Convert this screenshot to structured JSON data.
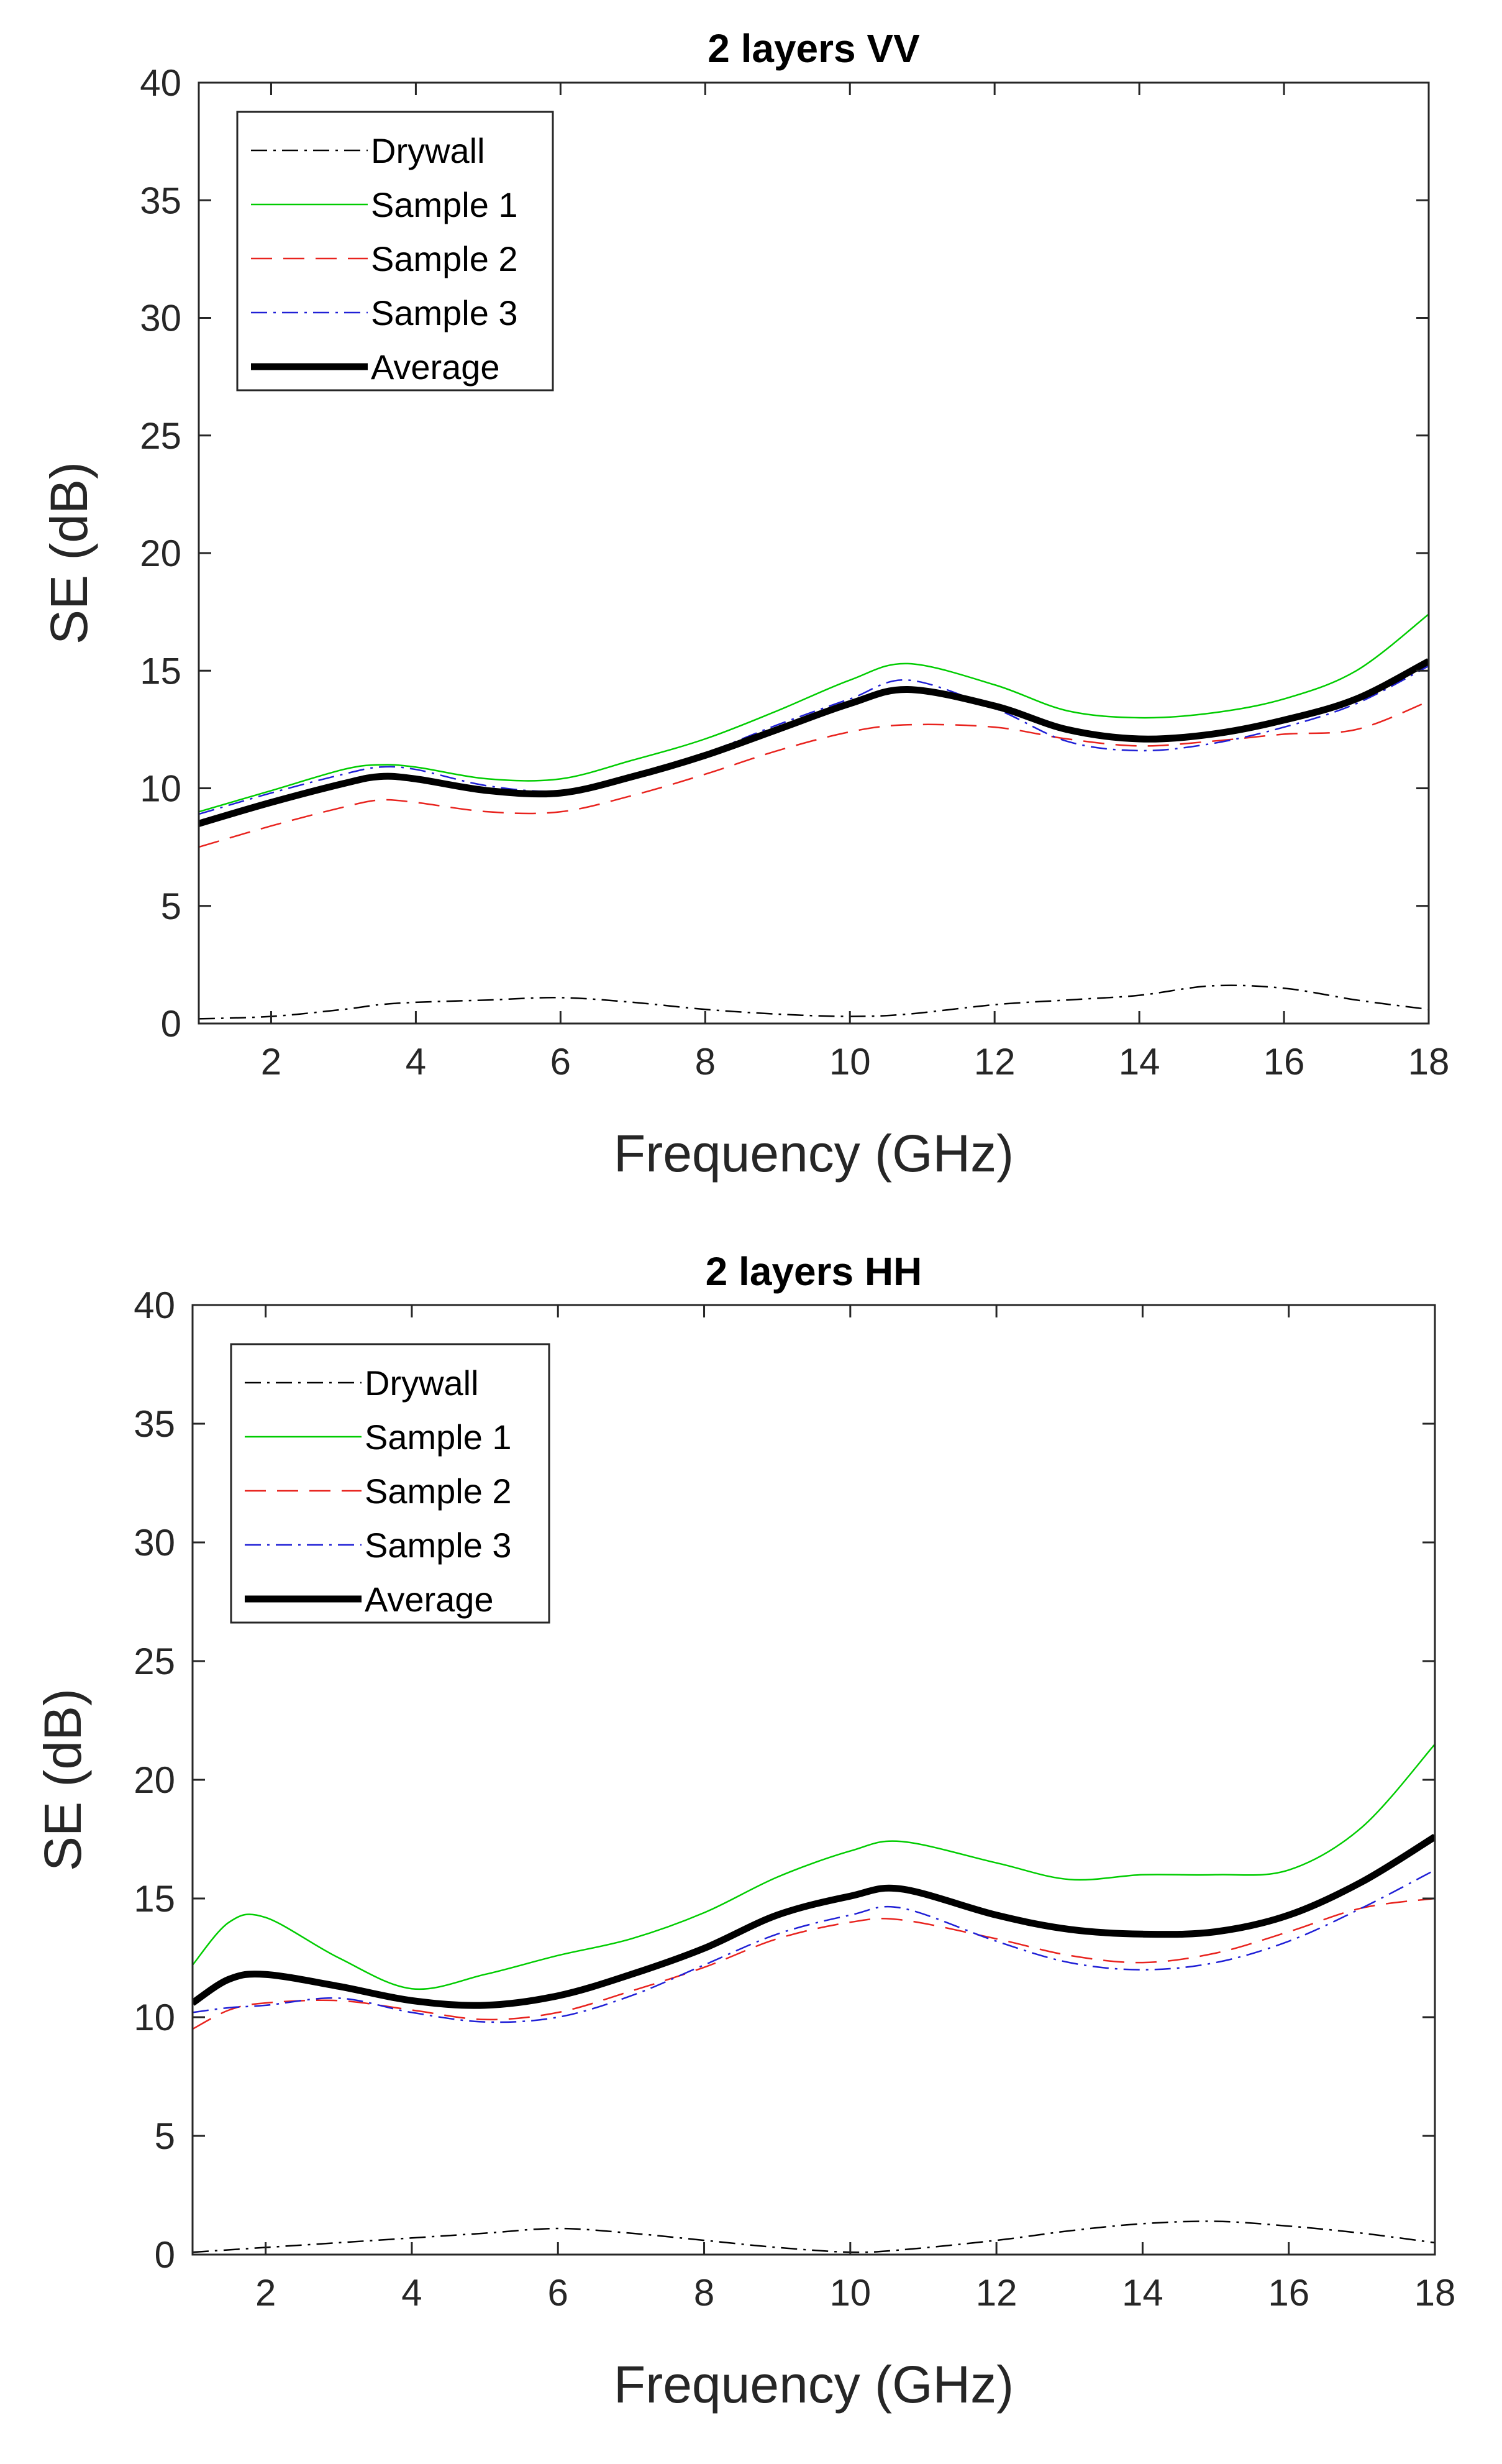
{
  "chart_data": [
    {
      "type": "line",
      "title": "2 layers VV",
      "xlabel": "Frequency (GHz)",
      "ylabel": "SE (dB)",
      "xlim": [
        1,
        18
      ],
      "ylim": [
        0,
        40
      ],
      "xticks": [
        "2",
        "4",
        "6",
        "8",
        "10",
        "12",
        "14",
        "16",
        "18"
      ],
      "yticks": [
        "0",
        "5",
        "10",
        "15",
        "20",
        "25",
        "30",
        "35",
        "40"
      ],
      "legend_position": "top-left",
      "x": [
        1,
        2,
        3,
        3.5,
        4,
        5,
        6,
        7,
        8,
        9,
        10,
        10.8,
        12,
        13,
        14,
        15,
        16,
        17,
        18
      ],
      "series": [
        {
          "name": "Drywall",
          "color": "#000000",
          "style": "dashdot",
          "width": 2.5,
          "values": [
            0.2,
            0.3,
            0.6,
            0.8,
            0.9,
            1.0,
            1.1,
            0.9,
            0.6,
            0.4,
            0.3,
            0.4,
            0.8,
            1.0,
            1.2,
            1.6,
            1.5,
            1.0,
            0.6
          ]
        },
        {
          "name": "Sample 1",
          "color": "#00cc00",
          "style": "solid",
          "width": 2.5,
          "values": [
            9.0,
            9.9,
            10.8,
            11.0,
            10.9,
            10.4,
            10.4,
            11.2,
            12.1,
            13.3,
            14.6,
            15.3,
            14.4,
            13.3,
            13.0,
            13.2,
            13.8,
            15.0,
            17.4
          ]
        },
        {
          "name": "Sample 2",
          "color": "#e8231e",
          "style": "dashed",
          "width": 2.5,
          "values": [
            7.5,
            8.4,
            9.2,
            9.5,
            9.4,
            9.0,
            9.0,
            9.7,
            10.6,
            11.6,
            12.4,
            12.7,
            12.6,
            12.1,
            11.8,
            12.0,
            12.3,
            12.5,
            13.7
          ]
        },
        {
          "name": "Sample 3",
          "color": "#1f1fd6",
          "style": "dashdot",
          "width": 2.5,
          "values": [
            8.9,
            9.8,
            10.6,
            10.9,
            10.8,
            10.1,
            9.9,
            10.6,
            11.5,
            12.7,
            13.8,
            14.6,
            13.4,
            12.0,
            11.6,
            11.9,
            12.6,
            13.6,
            15.2
          ]
        },
        {
          "name": "Average",
          "color": "#000000",
          "style": "solid",
          "width": 11,
          "values": [
            8.5,
            9.4,
            10.2,
            10.5,
            10.4,
            9.9,
            9.8,
            10.5,
            11.4,
            12.5,
            13.6,
            14.2,
            13.5,
            12.5,
            12.1,
            12.3,
            12.9,
            13.8,
            15.4
          ]
        }
      ]
    },
    {
      "type": "line",
      "title": "2 layers HH",
      "xlabel": "Frequency (GHz)",
      "ylabel": "SE (dB)",
      "xlim": [
        1,
        18
      ],
      "ylim": [
        0,
        40
      ],
      "xticks": [
        "2",
        "4",
        "6",
        "8",
        "10",
        "12",
        "14",
        "16",
        "18"
      ],
      "yticks": [
        "0",
        "5",
        "10",
        "15",
        "20",
        "25",
        "30",
        "35",
        "40"
      ],
      "legend_position": "top-left",
      "x": [
        1,
        1.5,
        2,
        3,
        4,
        5,
        6,
        7,
        8,
        9,
        10,
        10.7,
        12,
        13,
        14,
        15,
        16,
        17,
        18
      ],
      "series": [
        {
          "name": "Drywall",
          "color": "#000000",
          "style": "dashdot",
          "width": 2.5,
          "values": [
            0.1,
            0.2,
            0.3,
            0.5,
            0.7,
            0.9,
            1.1,
            0.9,
            0.6,
            0.3,
            0.1,
            0.2,
            0.6,
            1.0,
            1.3,
            1.4,
            1.2,
            0.9,
            0.5
          ]
        },
        {
          "name": "Sample 1",
          "color": "#00cc00",
          "style": "solid",
          "width": 2.5,
          "values": [
            12.2,
            14.0,
            14.2,
            12.5,
            11.2,
            11.8,
            12.6,
            13.3,
            14.4,
            15.9,
            17.0,
            17.4,
            16.5,
            15.8,
            16.0,
            16.0,
            16.2,
            18.0,
            21.5
          ]
        },
        {
          "name": "Sample 2",
          "color": "#e8231e",
          "style": "dashed",
          "width": 2.5,
          "values": [
            9.5,
            10.3,
            10.6,
            10.7,
            10.3,
            9.9,
            10.2,
            11.1,
            12.1,
            13.3,
            14.0,
            14.1,
            13.3,
            12.6,
            12.3,
            12.7,
            13.6,
            14.6,
            15.0
          ]
        },
        {
          "name": "Sample 3",
          "color": "#1f1fd6",
          "style": "dashdot",
          "width": 2.5,
          "values": [
            10.2,
            10.4,
            10.5,
            10.8,
            10.2,
            9.8,
            10.0,
            10.9,
            12.2,
            13.5,
            14.3,
            14.6,
            13.2,
            12.3,
            12.0,
            12.3,
            13.2,
            14.6,
            16.2
          ]
        },
        {
          "name": "Average",
          "color": "#000000",
          "style": "solid",
          "width": 11,
          "values": [
            10.6,
            11.6,
            11.8,
            11.3,
            10.7,
            10.5,
            10.9,
            11.8,
            12.9,
            14.3,
            15.1,
            15.4,
            14.3,
            13.7,
            13.5,
            13.6,
            14.3,
            15.7,
            17.6
          ]
        }
      ]
    }
  ]
}
